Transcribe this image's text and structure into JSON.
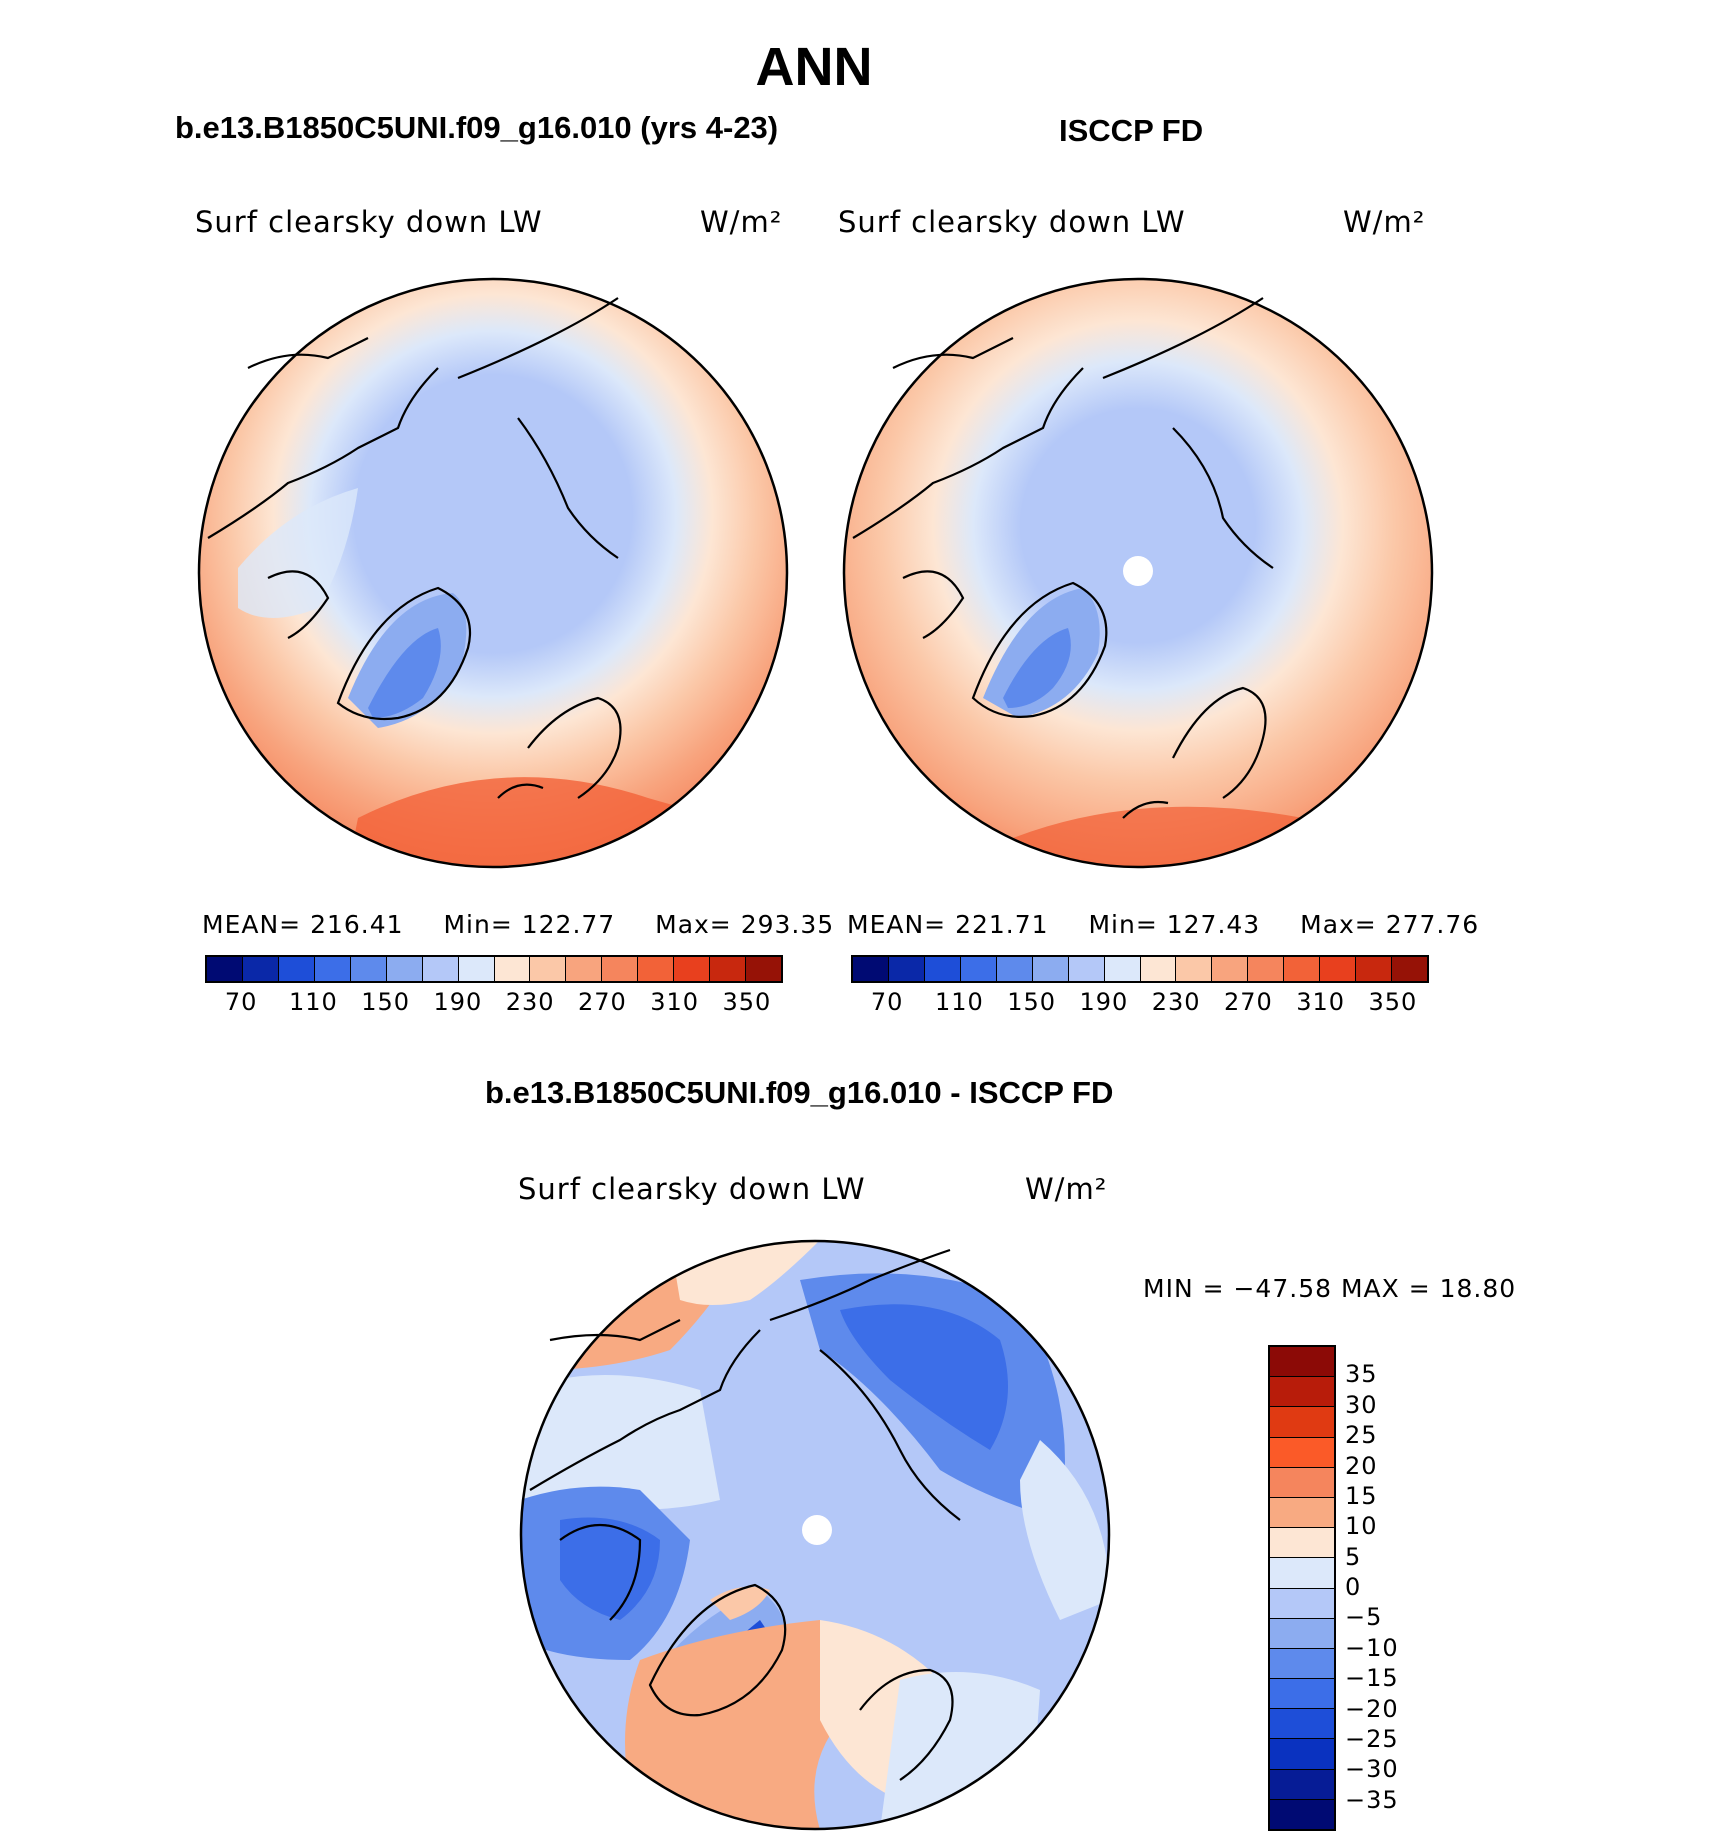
{
  "season": "ANN",
  "panels": {
    "model": {
      "title": "b.e13.B1850C5UNI.f09_g16.010 (yrs 4-23)",
      "variable": "Surf clearsky down LW",
      "units": "W/m²",
      "mean_label": "MEAN=",
      "mean": "216.41",
      "min_label": "Min=",
      "min": "122.77",
      "max_label": "Max=",
      "max": "293.35"
    },
    "obs": {
      "title": "ISCCP FD",
      "variable": "Surf clearsky down LW",
      "units": "W/m²",
      "mean_label": "MEAN=",
      "mean": "221.71",
      "min_label": "Min=",
      "min": "127.43",
      "max_label": "Max=",
      "max": "277.76"
    },
    "diff": {
      "title": "b.e13.B1850C5UNI.f09_g16.010 - ISCCP FD",
      "variable": "Surf clearsky down LW",
      "units": "W/m²",
      "minmax_text": "MIN = −47.58 MAX =   18.80"
    }
  },
  "abs_colorbar": {
    "colors": [
      "#000a73",
      "#0a28a8",
      "#1e4ed8",
      "#3c6ee8",
      "#5e8aec",
      "#8cacf0",
      "#b4c8f8",
      "#dce8fa",
      "#fde6d4",
      "#fbc8a8",
      "#f8a47e",
      "#f5855d",
      "#f26238",
      "#e8401e",
      "#c8280e",
      "#961206"
    ],
    "tick_labels": [
      "70",
      "110",
      "150",
      "190",
      "230",
      "270",
      "310",
      "350"
    ]
  },
  "diff_colorbar": {
    "colors": [
      "#8c0a06",
      "#b81c0a",
      "#e03a12",
      "#fb5a28",
      "#f5855d",
      "#f8aa82",
      "#fde6d4",
      "#dce8fa",
      "#b4c8f8",
      "#8cacf0",
      "#5e8aec",
      "#3c6ee8",
      "#1e4ed8",
      "#0a32c0",
      "#061c96",
      "#000a73"
    ],
    "tick_labels": [
      "35",
      "30",
      "25",
      "20",
      "15",
      "10",
      "5",
      "0",
      "−5",
      "−10",
      "−15",
      "−20",
      "−25",
      "−30",
      "−35"
    ]
  }
}
